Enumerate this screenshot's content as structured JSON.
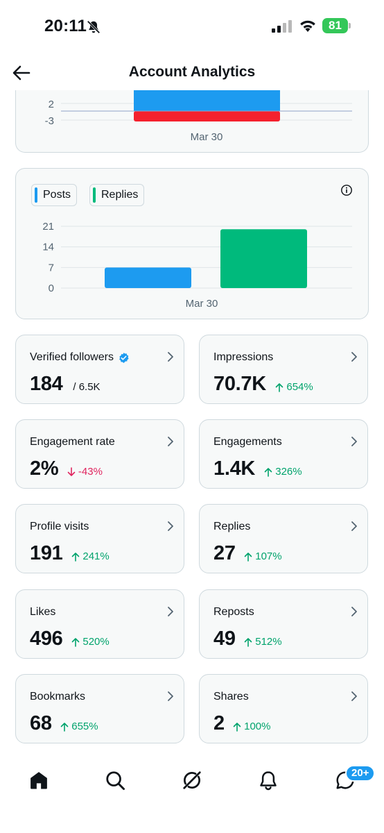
{
  "status_bar": {
    "time": "20:11",
    "battery": "81",
    "icons": [
      "bell-off-icon",
      "signal-icon",
      "wifi-icon",
      "battery-icon"
    ]
  },
  "header": {
    "title": "Account Analytics",
    "back_icon": "arrow-left-icon"
  },
  "chart_data": [
    {
      "type": "bar",
      "categories": [
        "Mar 30"
      ],
      "series": [
        {
          "values": [
            2
          ],
          "color": "#1d9bf0"
        },
        {
          "values": [
            -3
          ],
          "color": "#f4212e"
        }
      ],
      "y_tick_labels": [
        "2",
        "-3"
      ],
      "note_visible": "partially scrolled out of view"
    },
    {
      "type": "bar",
      "categories": [
        "Mar 30"
      ],
      "series": [
        {
          "name": "Posts",
          "values": [
            7
          ],
          "color": "#1d9bf0"
        },
        {
          "name": "Replies",
          "values": [
            20
          ],
          "color": "#00ba7c"
        }
      ],
      "y_tick_labels": [
        "21",
        "14",
        "7",
        "0"
      ],
      "ylim": [
        0,
        21
      ],
      "legend": [
        "Posts",
        "Replies"
      ],
      "legend_placement": "top-left"
    }
  ],
  "stats": [
    {
      "label": "Verified followers",
      "value": "184",
      "secondary": "/ 6.5K",
      "verified_badge": true
    },
    {
      "label": "Impressions",
      "value": "70.7K",
      "change": "654%",
      "direction": "up"
    },
    {
      "label": "Engagement rate",
      "value": "2%",
      "change": "-43%",
      "direction": "down"
    },
    {
      "label": "Engagements",
      "value": "1.4K",
      "change": "326%",
      "direction": "up"
    },
    {
      "label": "Profile visits",
      "value": "191",
      "change": "241%",
      "direction": "up"
    },
    {
      "label": "Replies",
      "value": "27",
      "change": "107%",
      "direction": "up"
    },
    {
      "label": "Likes",
      "value": "496",
      "change": "520%",
      "direction": "up"
    },
    {
      "label": "Reposts",
      "value": "49",
      "change": "512%",
      "direction": "up"
    },
    {
      "label": "Bookmarks",
      "value": "68",
      "change": "655%",
      "direction": "up"
    },
    {
      "label": "Shares",
      "value": "2",
      "change": "100%",
      "direction": "up"
    }
  ],
  "colors": {
    "posts": "#1d9bf0",
    "replies": "#00ba7c",
    "negative": "#f4212e",
    "up": "#00a36c",
    "down": "#e0245e",
    "card_border": "#cfd9de",
    "card_bg": "#f7f9f9"
  },
  "bottom_nav": {
    "items": [
      "home-icon",
      "search-icon",
      "grok-icon",
      "notifications-icon",
      "messages-icon"
    ],
    "messages_badge": "20+"
  }
}
